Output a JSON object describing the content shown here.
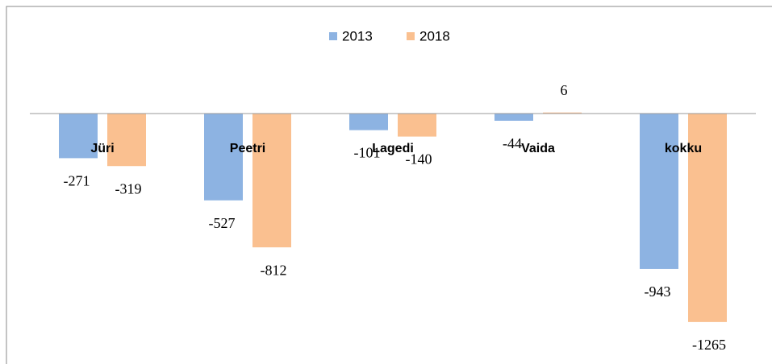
{
  "chart_data": {
    "type": "bar",
    "categories": [
      "Jüri",
      "Peetri",
      "Lagedi",
      "Vaida",
      "kokku"
    ],
    "series": [
      {
        "name": "2013",
        "color": "#8db3e2",
        "values": [
          -271,
          -527,
          -101,
          -44,
          -943
        ]
      },
      {
        "name": "2018",
        "color": "#fac090",
        "values": [
          -319,
          -812,
          -140,
          6,
          -1265
        ]
      }
    ],
    "ylim": [
      -1400,
      200
    ],
    "legend": "top"
  }
}
